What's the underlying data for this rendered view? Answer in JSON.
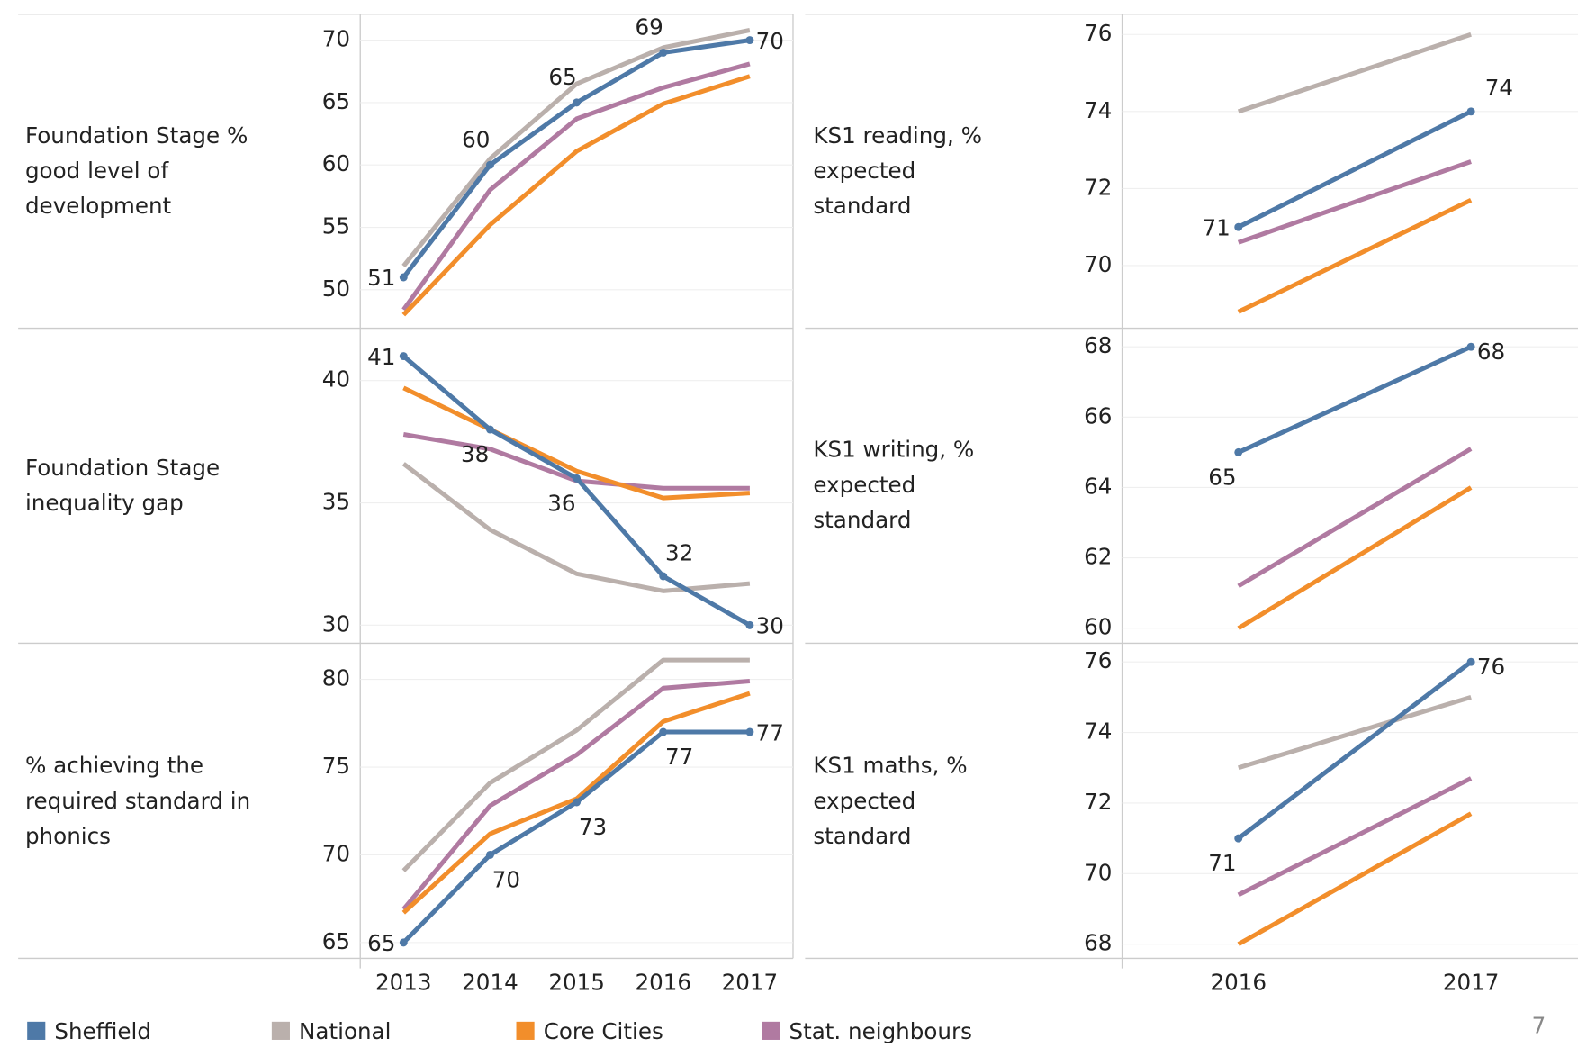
{
  "chart_data": [
    {
      "type": "line",
      "title": "Foundation Stage % good level of development",
      "x": [
        2013,
        2014,
        2015,
        2016,
        2017
      ],
      "xlim": [
        2012.5,
        2017.5
      ],
      "ylim": [
        47,
        72
      ],
      "yticks": [
        50,
        55,
        60,
        65,
        70
      ],
      "grid": true,
      "series": [
        {
          "name": "Sheffield",
          "color": "#4e79a7",
          "values": [
            51,
            60,
            65,
            69,
            70
          ],
          "data_labels": true
        },
        {
          "name": "National",
          "color": "#bab0ac",
          "values": [
            51.9,
            60.5,
            66.5,
            69.4,
            70.8
          ]
        },
        {
          "name": "Core Cities",
          "color": "#f28e2b",
          "values": [
            48,
            55.2,
            61.1,
            64.9,
            67.1
          ]
        },
        {
          "name": "Stat. neighbours",
          "color": "#b07aa1",
          "values": [
            48.4,
            58,
            63.7,
            66.2,
            68.1
          ]
        }
      ]
    },
    {
      "type": "line",
      "title": "Foundation Stage inequality gap",
      "x": [
        2013,
        2014,
        2015,
        2016,
        2017
      ],
      "xlim": [
        2012.5,
        2017.5
      ],
      "ylim": [
        29.3,
        42.1
      ],
      "yticks": [
        30,
        35,
        40
      ],
      "grid": true,
      "series": [
        {
          "values": [
            41,
            38,
            36,
            32,
            30
          ],
          "data_labels": true
        },
        {
          "values": [
            36.6,
            33.9,
            32.1,
            31.4,
            31.7
          ]
        },
        {
          "values": [
            39.7,
            38,
            36.3,
            35.2,
            35.4
          ]
        },
        {
          "values": [
            37.8,
            37.2,
            35.9,
            35.6,
            35.6
          ]
        }
      ]
    },
    {
      "type": "line",
      "title": "% achieving the required standard in phonics",
      "x": [
        2013,
        2014,
        2015,
        2016,
        2017
      ],
      "xlim": [
        2012.5,
        2017.5
      ],
      "xticks": [
        2013,
        2014,
        2015,
        2016,
        2017
      ],
      "ylim": [
        64.1,
        82
      ],
      "yticks": [
        65,
        70,
        75,
        80
      ],
      "grid": true,
      "series": [
        {
          "values": [
            65,
            70,
            73,
            77,
            77
          ],
          "data_labels": true
        },
        {
          "values": [
            69.1,
            74.1,
            77.1,
            81.1,
            81.1
          ]
        },
        {
          "values": [
            66.7,
            71.2,
            73.2,
            77.6,
            79.2
          ]
        },
        {
          "values": [
            66.9,
            72.8,
            75.7,
            79.5,
            79.9
          ]
        }
      ]
    },
    {
      "type": "line",
      "title": "KS1 reading, % expected standard",
      "x": [
        2016,
        2017
      ],
      "xlim": [
        2015.5,
        2017.46
      ],
      "ylim": [
        68.4,
        76.5
      ],
      "yticks": [
        70,
        72,
        74,
        76
      ],
      "grid": true,
      "series": [
        {
          "values": [
            71,
            74
          ],
          "data_labels": true
        },
        {
          "values": [
            74,
            76
          ]
        },
        {
          "values": [
            68.8,
            71.7
          ]
        },
        {
          "values": [
            70.6,
            72.7
          ]
        }
      ]
    },
    {
      "type": "line",
      "title": "KS1 writing, % expected standard",
      "x": [
        2016,
        2017
      ],
      "xlim": [
        2015.5,
        2017.46
      ],
      "ylim": [
        59.6,
        68.5
      ],
      "yticks": [
        60,
        62,
        64,
        66,
        68
      ],
      "grid": true,
      "series": [
        {
          "values": [
            65,
            68
          ],
          "data_labels": true
        },
        {
          "values": [
            null,
            null
          ]
        },
        {
          "values": [
            60,
            64
          ]
        },
        {
          "values": [
            61.2,
            65.1
          ]
        }
      ]
    },
    {
      "type": "line",
      "title": "KS1 maths, % expected standard",
      "x": [
        2016,
        2017
      ],
      "xlim": [
        2015.5,
        2017.46
      ],
      "xticks": [
        2016,
        2017
      ],
      "ylim": [
        67.6,
        76.5
      ],
      "yticks": [
        68,
        70,
        72,
        74,
        76
      ],
      "grid": true,
      "series": [
        {
          "values": [
            71,
            76
          ],
          "data_labels": true
        },
        {
          "values": [
            73,
            75
          ]
        },
        {
          "values": [
            68,
            71.7
          ]
        },
        {
          "values": [
            69.4,
            72.7
          ]
        }
      ]
    }
  ],
  "page_number": "7"
}
